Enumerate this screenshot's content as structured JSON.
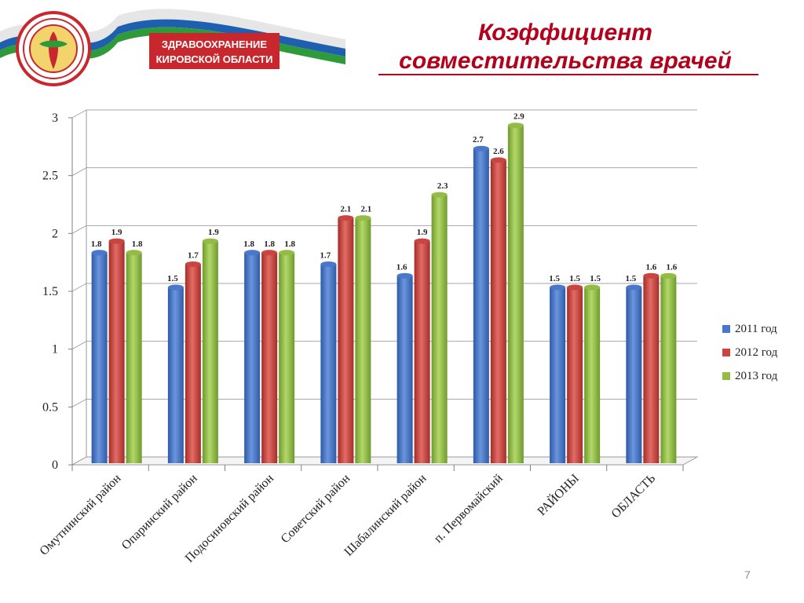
{
  "header": {
    "banner_line1": "ЗДРАВООХРАНЕНИЕ",
    "banner_line2": "КИРОВСКОЙ ОБЛАСТИ"
  },
  "title": {
    "line1": "Коэффициент",
    "line2": "совместительства врачей"
  },
  "page_number": "7",
  "chart_data": {
    "type": "bar",
    "categories": [
      "Омутнинский район",
      "Опаринский район",
      "Подосиновский район",
      "Советский район",
      "Шабалинский район",
      "п. Первомайский",
      "РАЙОНЫ",
      "ОБЛАСТЬ"
    ],
    "series": [
      {
        "name": "2011 год",
        "color": "#4a77c9",
        "values": [
          1.8,
          1.5,
          1.8,
          1.7,
          1.6,
          2.7,
          1.5,
          1.5
        ]
      },
      {
        "name": "2012 год",
        "color": "#c84540",
        "values": [
          1.9,
          1.7,
          1.8,
          2.1,
          1.9,
          2.6,
          1.5,
          1.6
        ]
      },
      {
        "name": "2013 год",
        "color": "#93bb45",
        "values": [
          1.8,
          1.9,
          1.8,
          2.1,
          2.3,
          2.9,
          1.5,
          1.6
        ]
      }
    ],
    "yticks": [
      "0",
      "0.5",
      "1",
      "1.5",
      "2",
      "2.5",
      "3"
    ],
    "ylim": [
      0,
      3
    ],
    "grid": true,
    "legend_position": "right"
  }
}
